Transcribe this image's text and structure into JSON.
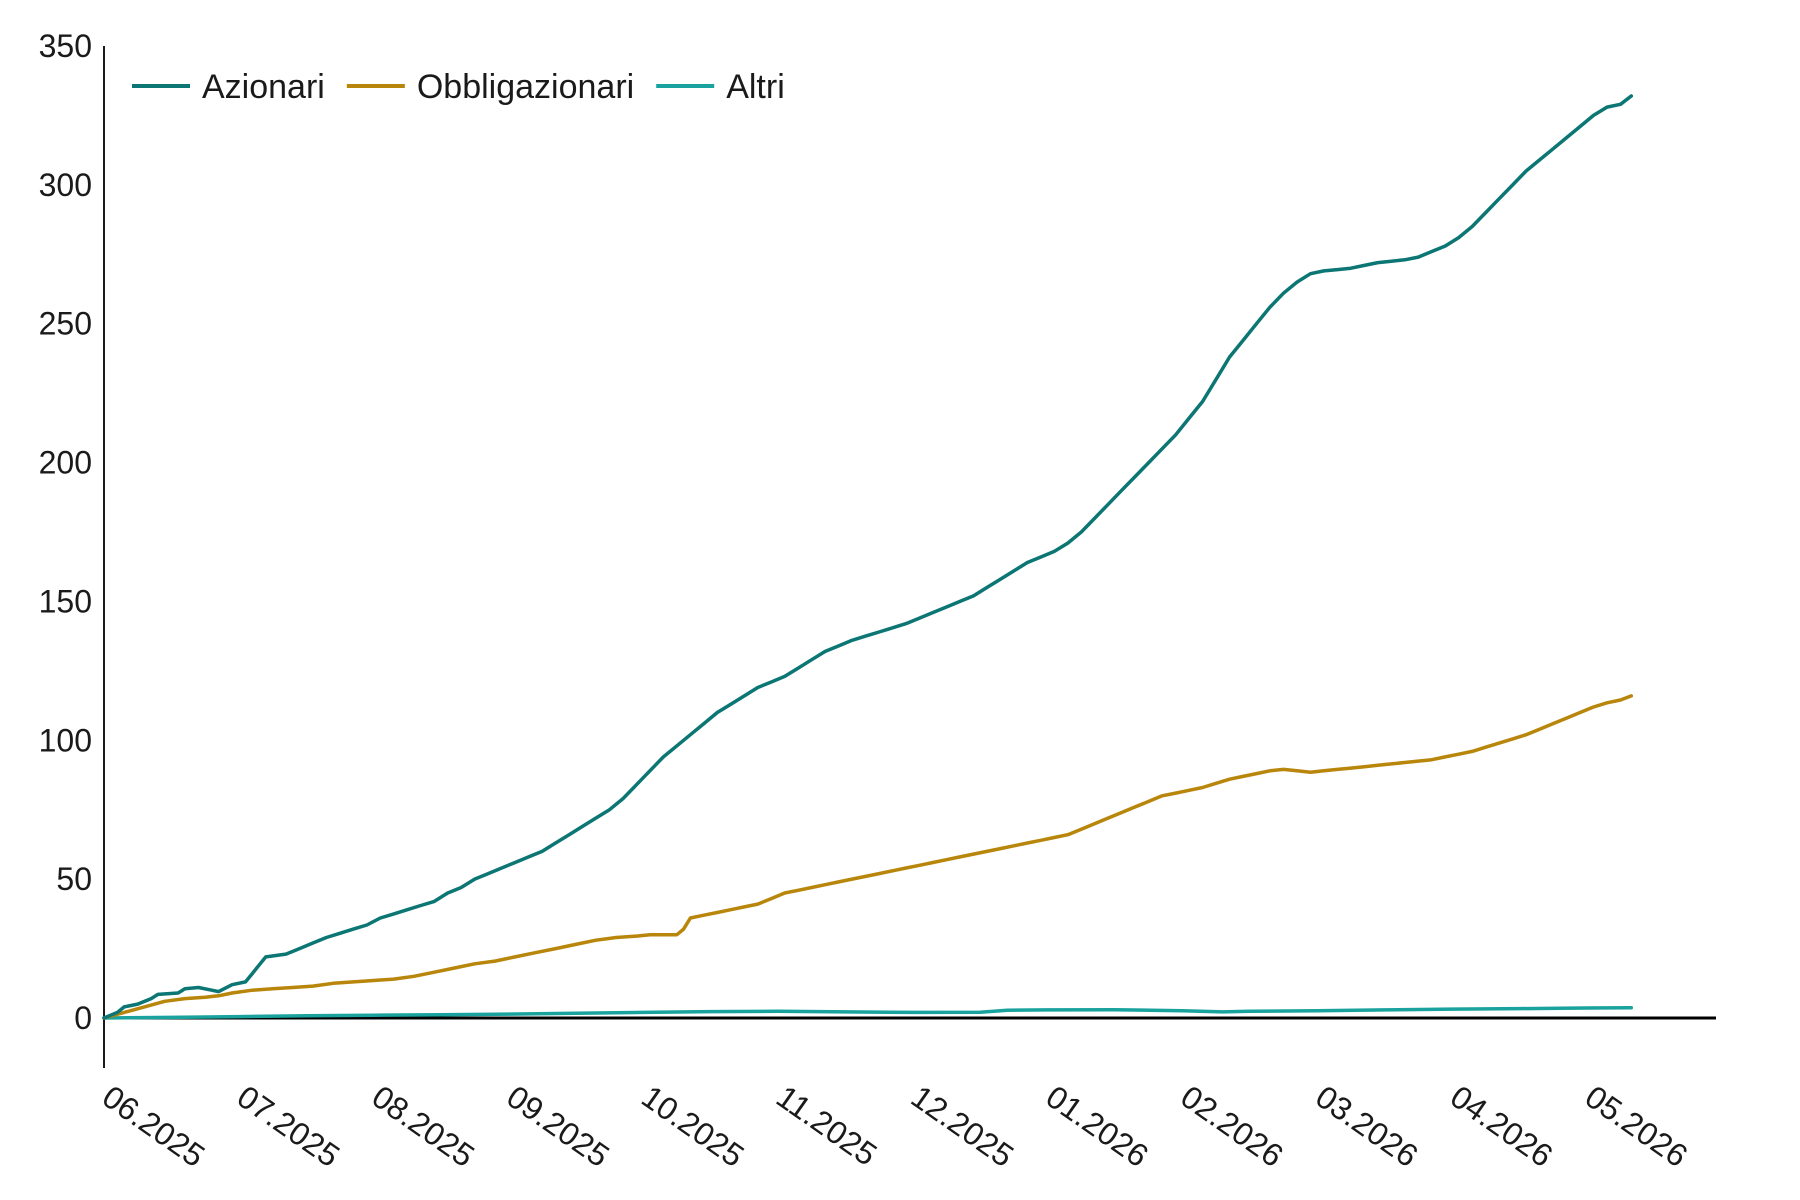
{
  "chart_data": {
    "type": "line",
    "title": "",
    "xlabel": "",
    "ylabel": "",
    "x_tick_labels": [
      "06.2025",
      "07.2025",
      "08.2025",
      "09.2025",
      "10.2025",
      "11.2025",
      "12.2025",
      "01.2026",
      "02.2026",
      "03.2026",
      "04.2026",
      "05.2026"
    ],
    "y_ticks": [
      0,
      50,
      100,
      150,
      200,
      250,
      300,
      350
    ],
    "ylim": [
      -18,
      350
    ],
    "x_months": 12,
    "legend_position": "top-left",
    "grid": false,
    "colors": {
      "Azionari": "#0b7673",
      "Obbligazionari": "#b8860b",
      "Altri": "#1aa39e",
      "zero_line": "#000000"
    },
    "series": [
      {
        "name": "Azionari",
        "points": [
          [
            0,
            0
          ],
          [
            0.1,
            2
          ],
          [
            0.15,
            4
          ],
          [
            0.25,
            5
          ],
          [
            0.35,
            7
          ],
          [
            0.4,
            8.5
          ],
          [
            0.55,
            9
          ],
          [
            0.6,
            10.5
          ],
          [
            0.7,
            11
          ],
          [
            0.8,
            10
          ],
          [
            0.85,
            9.5
          ],
          [
            0.95,
            12
          ],
          [
            1.05,
            13
          ],
          [
            1.1,
            16
          ],
          [
            1.15,
            19
          ],
          [
            1.2,
            22
          ],
          [
            1.35,
            23
          ],
          [
            1.45,
            25
          ],
          [
            1.55,
            27
          ],
          [
            1.65,
            29
          ],
          [
            1.75,
            30.5
          ],
          [
            1.85,
            32
          ],
          [
            1.95,
            33.5
          ],
          [
            2.05,
            36
          ],
          [
            2.15,
            37.5
          ],
          [
            2.25,
            39
          ],
          [
            2.35,
            40.5
          ],
          [
            2.45,
            42
          ],
          [
            2.55,
            45
          ],
          [
            2.65,
            47
          ],
          [
            2.75,
            50
          ],
          [
            2.85,
            52
          ],
          [
            2.95,
            54
          ],
          [
            3.05,
            56
          ],
          [
            3.15,
            58
          ],
          [
            3.25,
            60
          ],
          [
            3.35,
            63
          ],
          [
            3.45,
            66
          ],
          [
            3.55,
            69
          ],
          [
            3.65,
            72
          ],
          [
            3.75,
            75
          ],
          [
            3.85,
            79
          ],
          [
            3.95,
            84
          ],
          [
            4.05,
            89
          ],
          [
            4.15,
            94
          ],
          [
            4.25,
            98
          ],
          [
            4.35,
            102
          ],
          [
            4.45,
            106
          ],
          [
            4.55,
            110
          ],
          [
            4.65,
            113
          ],
          [
            4.75,
            116
          ],
          [
            4.85,
            119
          ],
          [
            4.95,
            121
          ],
          [
            5.05,
            123
          ],
          [
            5.15,
            126
          ],
          [
            5.25,
            129
          ],
          [
            5.35,
            132
          ],
          [
            5.45,
            134
          ],
          [
            5.55,
            136
          ],
          [
            5.65,
            137.5
          ],
          [
            5.75,
            139
          ],
          [
            5.85,
            140.5
          ],
          [
            5.95,
            142
          ],
          [
            6.05,
            144
          ],
          [
            6.15,
            146
          ],
          [
            6.25,
            148
          ],
          [
            6.35,
            150
          ],
          [
            6.45,
            152
          ],
          [
            6.55,
            155
          ],
          [
            6.65,
            158
          ],
          [
            6.75,
            161
          ],
          [
            6.85,
            164
          ],
          [
            6.95,
            166
          ],
          [
            7.05,
            168
          ],
          [
            7.15,
            171
          ],
          [
            7.25,
            175
          ],
          [
            7.35,
            180
          ],
          [
            7.45,
            185
          ],
          [
            7.55,
            190
          ],
          [
            7.65,
            195
          ],
          [
            7.75,
            200
          ],
          [
            7.85,
            205
          ],
          [
            7.95,
            210
          ],
          [
            8.05,
            216
          ],
          [
            8.15,
            222
          ],
          [
            8.25,
            230
          ],
          [
            8.35,
            238
          ],
          [
            8.45,
            244
          ],
          [
            8.55,
            250
          ],
          [
            8.65,
            256
          ],
          [
            8.75,
            261
          ],
          [
            8.85,
            265
          ],
          [
            8.95,
            268
          ],
          [
            9.05,
            269
          ],
          [
            9.15,
            269.5
          ],
          [
            9.25,
            270
          ],
          [
            9.35,
            271
          ],
          [
            9.45,
            272
          ],
          [
            9.55,
            272.5
          ],
          [
            9.65,
            273
          ],
          [
            9.75,
            274
          ],
          [
            9.85,
            276
          ],
          [
            9.95,
            278
          ],
          [
            10.05,
            281
          ],
          [
            10.15,
            285
          ],
          [
            10.25,
            290
          ],
          [
            10.35,
            295
          ],
          [
            10.45,
            300
          ],
          [
            10.55,
            305
          ],
          [
            10.65,
            309
          ],
          [
            10.75,
            313
          ],
          [
            10.85,
            317
          ],
          [
            10.95,
            321
          ],
          [
            11.05,
            325
          ],
          [
            11.15,
            328
          ],
          [
            11.25,
            329
          ],
          [
            11.33,
            332
          ]
        ]
      },
      {
        "name": "Obbligazionari",
        "points": [
          [
            0,
            0
          ],
          [
            0.15,
            2
          ],
          [
            0.3,
            4
          ],
          [
            0.45,
            6
          ],
          [
            0.6,
            7
          ],
          [
            0.75,
            7.5
          ],
          [
            0.85,
            8
          ],
          [
            0.95,
            9
          ],
          [
            1.1,
            10
          ],
          [
            1.25,
            10.5
          ],
          [
            1.4,
            11
          ],
          [
            1.55,
            11.5
          ],
          [
            1.7,
            12.5
          ],
          [
            1.85,
            13
          ],
          [
            2.0,
            13.5
          ],
          [
            2.15,
            14
          ],
          [
            2.3,
            15
          ],
          [
            2.45,
            16.5
          ],
          [
            2.6,
            18
          ],
          [
            2.75,
            19.5
          ],
          [
            2.9,
            20.5
          ],
          [
            3.05,
            22
          ],
          [
            3.2,
            23.5
          ],
          [
            3.35,
            25
          ],
          [
            3.5,
            26.5
          ],
          [
            3.65,
            28
          ],
          [
            3.8,
            29
          ],
          [
            3.95,
            29.5
          ],
          [
            4.05,
            30
          ],
          [
            4.15,
            30
          ],
          [
            4.25,
            30
          ],
          [
            4.3,
            32
          ],
          [
            4.35,
            36
          ],
          [
            4.45,
            37
          ],
          [
            4.55,
            38
          ],
          [
            4.65,
            39
          ],
          [
            4.75,
            40
          ],
          [
            4.85,
            41
          ],
          [
            4.95,
            43
          ],
          [
            5.05,
            45
          ],
          [
            5.15,
            46
          ],
          [
            5.25,
            47
          ],
          [
            5.35,
            48
          ],
          [
            5.45,
            49
          ],
          [
            5.55,
            50
          ],
          [
            5.65,
            51
          ],
          [
            5.75,
            52
          ],
          [
            5.85,
            53
          ],
          [
            5.95,
            54
          ],
          [
            6.05,
            55
          ],
          [
            6.15,
            56
          ],
          [
            6.25,
            57
          ],
          [
            6.35,
            58
          ],
          [
            6.45,
            59
          ],
          [
            6.55,
            60
          ],
          [
            6.65,
            61
          ],
          [
            6.75,
            62
          ],
          [
            6.85,
            63
          ],
          [
            6.95,
            64
          ],
          [
            7.05,
            65
          ],
          [
            7.15,
            66
          ],
          [
            7.25,
            68
          ],
          [
            7.35,
            70
          ],
          [
            7.45,
            72
          ],
          [
            7.55,
            74
          ],
          [
            7.65,
            76
          ],
          [
            7.75,
            78
          ],
          [
            7.85,
            80
          ],
          [
            7.95,
            81
          ],
          [
            8.05,
            82
          ],
          [
            8.15,
            83
          ],
          [
            8.25,
            84.5
          ],
          [
            8.35,
            86
          ],
          [
            8.45,
            87
          ],
          [
            8.55,
            88
          ],
          [
            8.65,
            89
          ],
          [
            8.75,
            89.5
          ],
          [
            8.85,
            89
          ],
          [
            8.95,
            88.5
          ],
          [
            9.05,
            89
          ],
          [
            9.15,
            89.5
          ],
          [
            9.25,
            90
          ],
          [
            9.35,
            90.5
          ],
          [
            9.45,
            91
          ],
          [
            9.55,
            91.5
          ],
          [
            9.65,
            92
          ],
          [
            9.75,
            92.5
          ],
          [
            9.85,
            93
          ],
          [
            9.95,
            94
          ],
          [
            10.05,
            95
          ],
          [
            10.15,
            96
          ],
          [
            10.25,
            97.5
          ],
          [
            10.35,
            99
          ],
          [
            10.45,
            100.5
          ],
          [
            10.55,
            102
          ],
          [
            10.65,
            104
          ],
          [
            10.75,
            106
          ],
          [
            10.85,
            108
          ],
          [
            10.95,
            110
          ],
          [
            11.05,
            112
          ],
          [
            11.15,
            113.5
          ],
          [
            11.25,
            114.5
          ],
          [
            11.33,
            116
          ]
        ]
      },
      {
        "name": "Altri",
        "points": [
          [
            0,
            0
          ],
          [
            0.5,
            0.2
          ],
          [
            1.0,
            0.5
          ],
          [
            1.5,
            0.8
          ],
          [
            2.0,
            1.0
          ],
          [
            2.5,
            1.2
          ],
          [
            3.0,
            1.4
          ],
          [
            3.5,
            1.7
          ],
          [
            4.0,
            2.0
          ],
          [
            4.5,
            2.3
          ],
          [
            5.0,
            2.4
          ],
          [
            5.5,
            2.2
          ],
          [
            6.0,
            2.0
          ],
          [
            6.5,
            2.1
          ],
          [
            6.7,
            2.8
          ],
          [
            7.0,
            2.9
          ],
          [
            7.5,
            3.0
          ],
          [
            8.0,
            2.6
          ],
          [
            8.3,
            2.2
          ],
          [
            8.5,
            2.4
          ],
          [
            9.0,
            2.6
          ],
          [
            9.5,
            2.9
          ],
          [
            10.0,
            3.2
          ],
          [
            10.5,
            3.4
          ],
          [
            10.8,
            3.5
          ],
          [
            11.0,
            3.6
          ],
          [
            11.33,
            3.7
          ]
        ]
      }
    ]
  }
}
